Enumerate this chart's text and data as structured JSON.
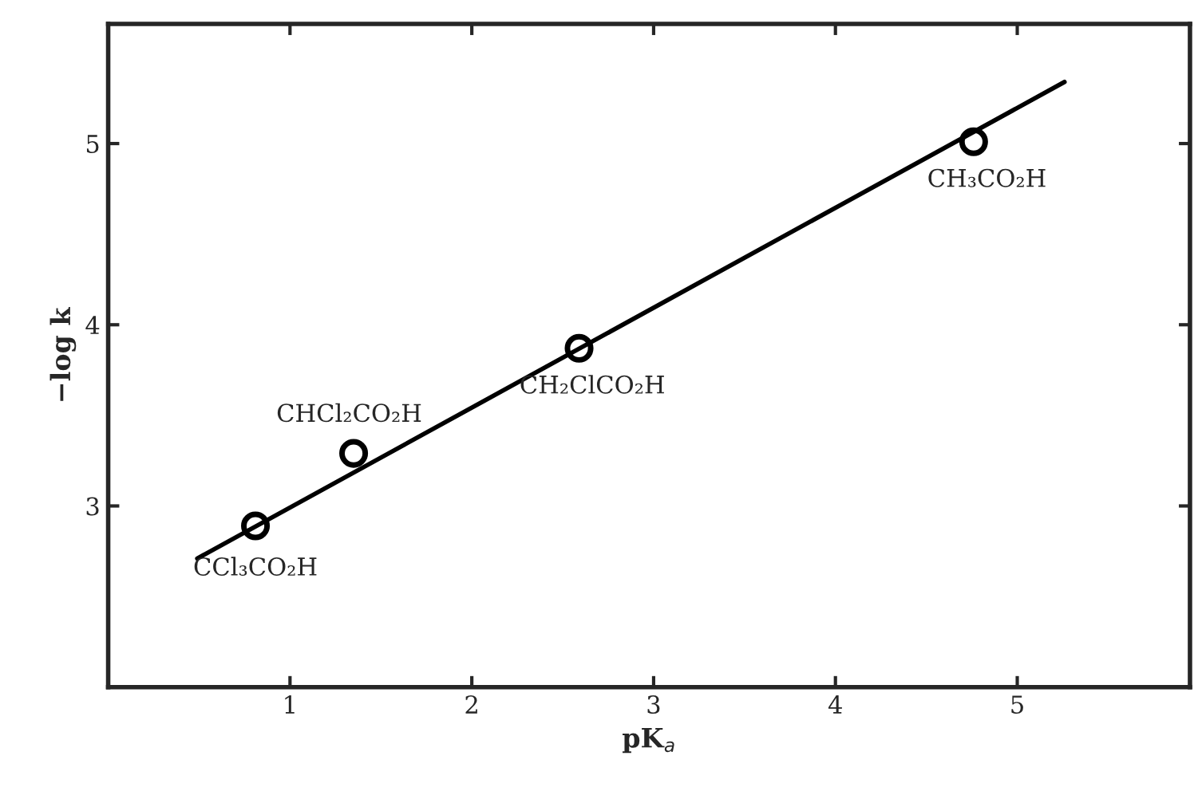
{
  "chart_data": {
    "type": "scatter",
    "xlabel": "pK$_{a}$",
    "ylabel": "−log k",
    "series": [
      {
        "color": "#000000",
        "marker": "circle",
        "x": [
          0.81,
          1.35,
          2.59,
          4.76
        ],
        "values": [
          2.89,
          3.29,
          3.87,
          5.01
        ]
      },
      {
        "type": "line",
        "color": "#000000",
        "marker": "none",
        "line_style": "solid",
        "x": [
          0.49,
          5.26
        ],
        "values": [
          2.71,
          5.34
        ]
      }
    ],
    "annotations": [
      {
        "text": "CCl₃CO₂H",
        "x": 0.81,
        "y": 2.89
      },
      {
        "text": "CHCl₂CO₂H",
        "x": 1.35,
        "y": 3.29
      },
      {
        "text": "CH₂ClCO₂H",
        "x": 2.59,
        "y": 3.87
      },
      {
        "text": "CH₃CO₂H",
        "x": 4.76,
        "y": 5.01
      }
    ],
    "xlim": [
      0,
      5.95
    ],
    "ylim": [
      2.0,
      5.66
    ],
    "xticks": [
      1,
      2,
      3,
      4,
      5
    ],
    "yticks": [
      3,
      4,
      5
    ],
    "grid": false,
    "legend": false
  }
}
